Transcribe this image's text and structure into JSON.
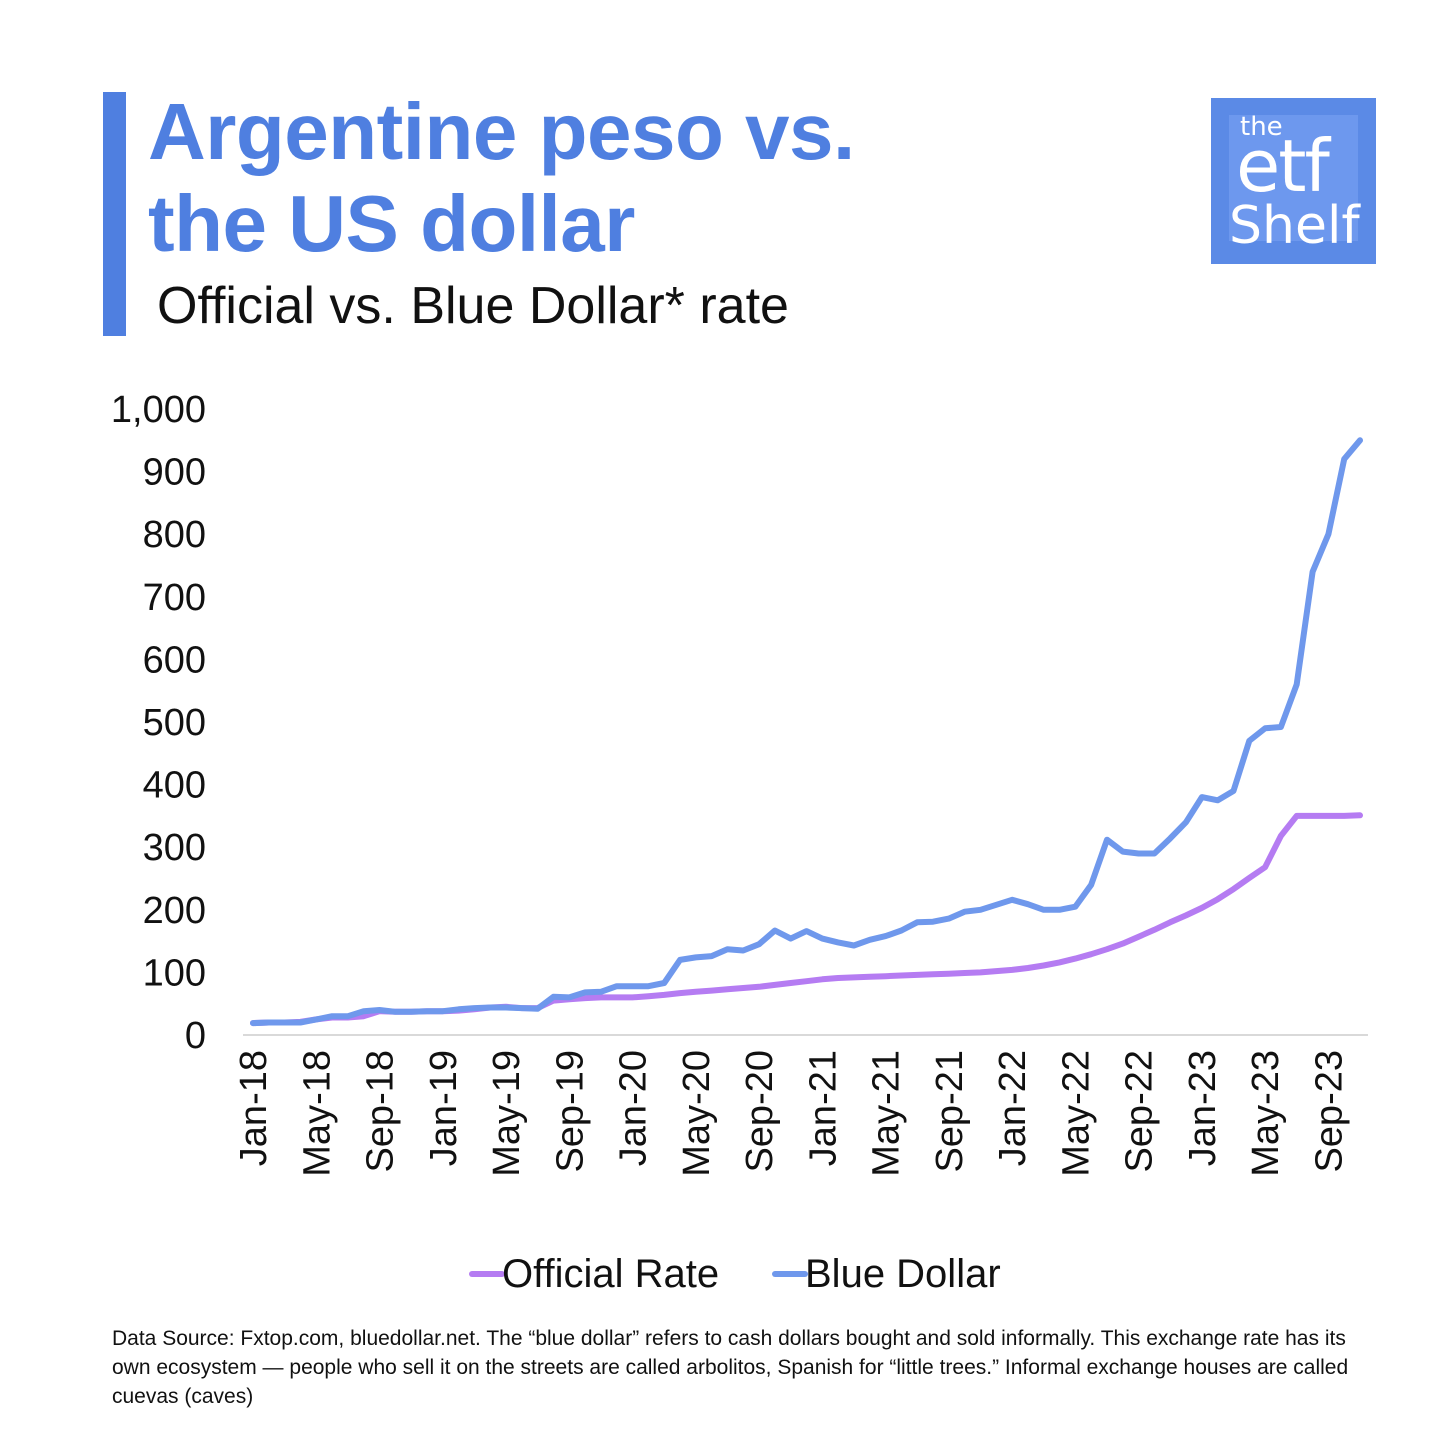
{
  "title_line1": "Argentine peso vs.",
  "title_line2": "the US dollar",
  "subtitle": "Official vs. Blue Dollar* rate",
  "logo": {
    "the": "the",
    "etf": "etf",
    "shelf": "Shelf"
  },
  "footnote": "Data Source: Fxtop.com, bluedollar.net. The “blue dollar” refers to cash dollars bought and sold informally. This exchange rate has its own ecosystem — people who sell it on the streets are called arbolitos, Spanish for “little trees.” Informal exchange houses are called cuevas (caves)",
  "colors": {
    "accent": "#4f7fe0",
    "official": "#b57cf2",
    "blue": "#6f98ec",
    "axis": "#d9d9d9"
  },
  "chart_data": {
    "type": "line",
    "ylim": [
      0,
      1000
    ],
    "yticks": [
      0,
      100,
      200,
      300,
      400,
      500,
      600,
      700,
      800,
      900,
      1000
    ],
    "ytick_labels": [
      "0",
      "100",
      "200",
      "300",
      "400",
      "500",
      "600",
      "700",
      "800",
      "900",
      "1,000"
    ],
    "x": [
      "2018-01",
      "2018-02",
      "2018-03",
      "2018-04",
      "2018-05",
      "2018-06",
      "2018-07",
      "2018-08",
      "2018-09",
      "2018-10",
      "2018-11",
      "2018-12",
      "2019-01",
      "2019-02",
      "2019-03",
      "2019-04",
      "2019-05",
      "2019-06",
      "2019-07",
      "2019-08",
      "2019-09",
      "2019-10",
      "2019-11",
      "2019-12",
      "2020-01",
      "2020-02",
      "2020-03",
      "2020-04",
      "2020-05",
      "2020-06",
      "2020-07",
      "2020-08",
      "2020-09",
      "2020-10",
      "2020-11",
      "2020-12",
      "2021-01",
      "2021-02",
      "2021-03",
      "2021-04",
      "2021-05",
      "2021-06",
      "2021-07",
      "2021-08",
      "2021-09",
      "2021-10",
      "2021-11",
      "2021-12",
      "2022-01",
      "2022-02",
      "2022-03",
      "2022-04",
      "2022-05",
      "2022-06",
      "2022-07",
      "2022-08",
      "2022-09",
      "2022-10",
      "2022-11",
      "2022-12",
      "2023-01",
      "2023-02",
      "2023-03",
      "2023-04",
      "2023-05",
      "2023-06",
      "2023-07",
      "2023-08",
      "2023-09",
      "2023-10",
      "2023-11"
    ],
    "xtick_labels": [
      "Jan-18",
      "May-18",
      "Sep-18",
      "Jan-19",
      "May-19",
      "Sep-19",
      "Jan-20",
      "May-20",
      "Sep-20",
      "Jan-21",
      "May-21",
      "Sep-21",
      "Jan-22",
      "May-22",
      "Sep-22",
      "Jan-23",
      "May-23",
      "Sep-23"
    ],
    "xtick_every": 4,
    "series": [
      {
        "name": "Official Rate",
        "color": "#b57cf2",
        "values": [
          19,
          20,
          20,
          21,
          25,
          28,
          28,
          30,
          38,
          37,
          37,
          38,
          38,
          39,
          41,
          44,
          45,
          43,
          43,
          55,
          57,
          59,
          60,
          60,
          60,
          62,
          64,
          67,
          69,
          71,
          73,
          75,
          77,
          80,
          83,
          86,
          89,
          91,
          92,
          93,
          94,
          95,
          96,
          97,
          98,
          99,
          100,
          102,
          104,
          107,
          111,
          116,
          122,
          129,
          137,
          146,
          157,
          168,
          180,
          191,
          203,
          217,
          233,
          251,
          268,
          318,
          350,
          350,
          350,
          350,
          351
        ]
      },
      {
        "name": "Blue Dollar",
        "color": "#6f98ec",
        "values": [
          19,
          20,
          20,
          20,
          25,
          30,
          30,
          38,
          40,
          37,
          37,
          38,
          38,
          41,
          43,
          44,
          44,
          43,
          42,
          61,
          60,
          68,
          69,
          78,
          78,
          78,
          83,
          120,
          124,
          126,
          137,
          135,
          145,
          167,
          154,
          166,
          154,
          148,
          143,
          152,
          158,
          167,
          180,
          181,
          186,
          197,
          200,
          208,
          216,
          209,
          200,
          200,
          205,
          240,
          312,
          293,
          290,
          290,
          314,
          340,
          380,
          375,
          390,
          470,
          490,
          492,
          560,
          740,
          800,
          920,
          950
        ]
      }
    ]
  }
}
